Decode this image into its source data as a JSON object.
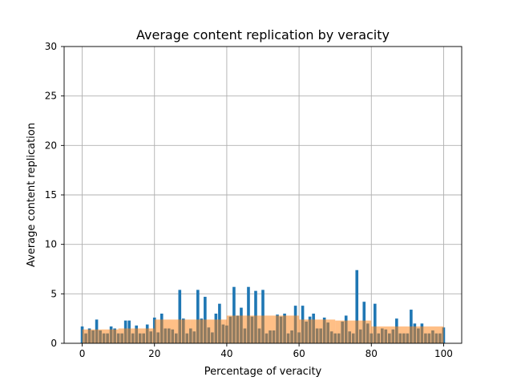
{
  "chart_data": {
    "type": "bar",
    "title": "Average content replication by veracity",
    "xlabel": "Percentage of veracity",
    "ylabel": "Average content replication",
    "xlim": [
      -5,
      105
    ],
    "ylim": [
      0,
      30
    ],
    "x_ticks": [
      0,
      20,
      40,
      60,
      80,
      100
    ],
    "y_ticks": [
      0,
      5,
      10,
      15,
      20,
      25,
      30
    ],
    "grid": true,
    "colors": {
      "series_blue": "#1f77b4",
      "series_orange": "#ff7f0e"
    },
    "series": [
      {
        "color": "#1f77b4",
        "bar_width": 0.8,
        "points": [
          {
            "x": 0,
            "y": 1.7
          },
          {
            "x": 1,
            "y": 1.0
          },
          {
            "x": 2,
            "y": 1.5
          },
          {
            "x": 3,
            "y": 1.3
          },
          {
            "x": 4,
            "y": 2.4
          },
          {
            "x": 5,
            "y": 1.3
          },
          {
            "x": 6,
            "y": 1.0
          },
          {
            "x": 7,
            "y": 1.0
          },
          {
            "x": 8,
            "y": 1.7
          },
          {
            "x": 9,
            "y": 1.5
          },
          {
            "x": 10,
            "y": 1.0
          },
          {
            "x": 11,
            "y": 1.0
          },
          {
            "x": 12,
            "y": 2.3
          },
          {
            "x": 13,
            "y": 2.3
          },
          {
            "x": 14,
            "y": 1.0
          },
          {
            "x": 15,
            "y": 1.8
          },
          {
            "x": 16,
            "y": 1.0
          },
          {
            "x": 17,
            "y": 1.0
          },
          {
            "x": 18,
            "y": 1.9
          },
          {
            "x": 19,
            "y": 1.2
          },
          {
            "x": 20,
            "y": 2.6
          },
          {
            "x": 21,
            "y": 1.1
          },
          {
            "x": 22,
            "y": 3.0
          },
          {
            "x": 23,
            "y": 1.5
          },
          {
            "x": 24,
            "y": 1.5
          },
          {
            "x": 25,
            "y": 1.4
          },
          {
            "x": 26,
            "y": 1.0
          },
          {
            "x": 27,
            "y": 5.4
          },
          {
            "x": 28,
            "y": 2.5
          },
          {
            "x": 29,
            "y": 1.0
          },
          {
            "x": 30,
            "y": 1.5
          },
          {
            "x": 31,
            "y": 1.2
          },
          {
            "x": 32,
            "y": 5.4
          },
          {
            "x": 33,
            "y": 2.5
          },
          {
            "x": 34,
            "y": 4.7
          },
          {
            "x": 35,
            "y": 1.6
          },
          {
            "x": 36,
            "y": 1.1
          },
          {
            "x": 37,
            "y": 3.0
          },
          {
            "x": 38,
            "y": 4.0
          },
          {
            "x": 39,
            "y": 1.9
          },
          {
            "x": 40,
            "y": 1.8
          },
          {
            "x": 41,
            "y": 2.7
          },
          {
            "x": 42,
            "y": 5.7
          },
          {
            "x": 43,
            "y": 2.8
          },
          {
            "x": 44,
            "y": 3.6
          },
          {
            "x": 45,
            "y": 1.5
          },
          {
            "x": 46,
            "y": 5.7
          },
          {
            "x": 47,
            "y": 2.7
          },
          {
            "x": 48,
            "y": 5.3
          },
          {
            "x": 49,
            "y": 1.5
          },
          {
            "x": 50,
            "y": 5.4
          },
          {
            "x": 51,
            "y": 1.0
          },
          {
            "x": 52,
            "y": 1.3
          },
          {
            "x": 53,
            "y": 1.3
          },
          {
            "x": 54,
            "y": 2.9
          },
          {
            "x": 55,
            "y": 2.7
          },
          {
            "x": 56,
            "y": 3.0
          },
          {
            "x": 57,
            "y": 1.0
          },
          {
            "x": 58,
            "y": 1.3
          },
          {
            "x": 59,
            "y": 3.8
          },
          {
            "x": 60,
            "y": 1.1
          },
          {
            "x": 61,
            "y": 3.8
          },
          {
            "x": 62,
            "y": 2.2
          },
          {
            "x": 63,
            "y": 2.7
          },
          {
            "x": 64,
            "y": 3.0
          },
          {
            "x": 65,
            "y": 1.5
          },
          {
            "x": 66,
            "y": 1.5
          },
          {
            "x": 67,
            "y": 2.6
          },
          {
            "x": 68,
            "y": 2.1
          },
          {
            "x": 69,
            "y": 1.2
          },
          {
            "x": 70,
            "y": 1.0
          },
          {
            "x": 71,
            "y": 1.0
          },
          {
            "x": 72,
            "y": 2.2
          },
          {
            "x": 73,
            "y": 2.8
          },
          {
            "x": 74,
            "y": 1.2
          },
          {
            "x": 75,
            "y": 1.0
          },
          {
            "x": 76,
            "y": 7.4
          },
          {
            "x": 77,
            "y": 1.4
          },
          {
            "x": 78,
            "y": 4.2
          },
          {
            "x": 79,
            "y": 2.0
          },
          {
            "x": 80,
            "y": 1.0
          },
          {
            "x": 81,
            "y": 4.0
          },
          {
            "x": 82,
            "y": 1.0
          },
          {
            "x": 83,
            "y": 1.5
          },
          {
            "x": 84,
            "y": 1.4
          },
          {
            "x": 85,
            "y": 1.0
          },
          {
            "x": 86,
            "y": 1.4
          },
          {
            "x": 87,
            "y": 2.5
          },
          {
            "x": 88,
            "y": 1.0
          },
          {
            "x": 89,
            "y": 1.0
          },
          {
            "x": 90,
            "y": 1.0
          },
          {
            "x": 91,
            "y": 3.4
          },
          {
            "x": 92,
            "y": 2.0
          },
          {
            "x": 93,
            "y": 1.5
          },
          {
            "x": 94,
            "y": 2.0
          },
          {
            "x": 95,
            "y": 1.0
          },
          {
            "x": 96,
            "y": 1.0
          },
          {
            "x": 97,
            "y": 1.3
          },
          {
            "x": 98,
            "y": 1.0
          },
          {
            "x": 99,
            "y": 1.0
          },
          {
            "x": 100,
            "y": 1.6
          }
        ]
      },
      {
        "color": "#ff7f0e",
        "opacity": 0.5,
        "bar_width": 10,
        "points": [
          {
            "x": 5,
            "y": 1.4
          },
          {
            "x": 15,
            "y": 1.5
          },
          {
            "x": 25,
            "y": 2.4
          },
          {
            "x": 35,
            "y": 2.4
          },
          {
            "x": 45,
            "y": 2.8
          },
          {
            "x": 55,
            "y": 2.8
          },
          {
            "x": 65,
            "y": 2.4
          },
          {
            "x": 75,
            "y": 2.3
          },
          {
            "x": 85,
            "y": 1.7
          },
          {
            "x": 95,
            "y": 1.7
          }
        ]
      }
    ]
  }
}
